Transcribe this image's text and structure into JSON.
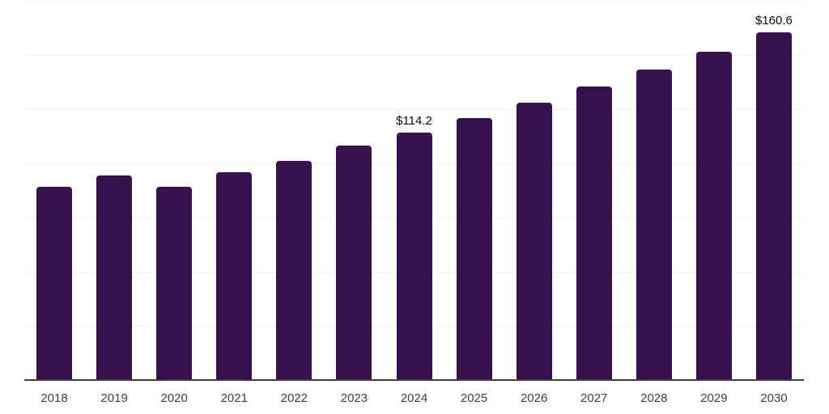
{
  "chart_data": {
    "type": "bar",
    "title": "",
    "xlabel": "",
    "ylabel": "",
    "categories": [
      "2018",
      "2019",
      "2020",
      "2021",
      "2022",
      "2023",
      "2024",
      "2025",
      "2026",
      "2027",
      "2028",
      "2029",
      "2030"
    ],
    "values": [
      89.2,
      94.5,
      89.0,
      95.8,
      101.2,
      108.2,
      114.2,
      120.9,
      127.9,
      135.3,
      143.3,
      151.6,
      160.6
    ],
    "data_labels": [
      "",
      "",
      "",
      "",
      "",
      "",
      "$114.2",
      "",
      "",
      "",
      "",
      "",
      "$160.6"
    ],
    "ylim": [
      0,
      175
    ],
    "gridline_step": 25,
    "grid": "horizontal-only",
    "legend": "none",
    "colors": {
      "bar": "#36114E",
      "axis_line": "#3e3e3e",
      "gridline": "#f0f0f0",
      "tick_label": "#3f3f3f",
      "value_label": "#0c0c0c",
      "background": "#ffffff"
    }
  }
}
